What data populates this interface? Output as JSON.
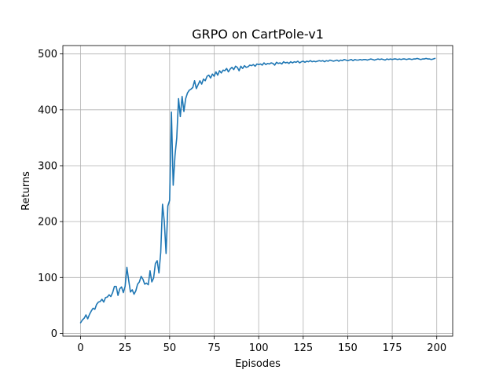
{
  "chart_data": {
    "type": "line",
    "title": "GRPO on CartPole-v1",
    "xlabel": "Episodes",
    "ylabel": "Returns",
    "xlim": [
      -9.95,
      208.95
    ],
    "ylim": [
      -5,
      515
    ],
    "xticks": [
      0,
      25,
      50,
      75,
      100,
      125,
      150,
      175,
      200
    ],
    "yticks": [
      0,
      100,
      200,
      300,
      400,
      500
    ],
    "grid": true,
    "line_color": "#1f77b4",
    "series": [
      {
        "x": [
          0,
          1,
          2,
          3,
          4,
          5,
          6,
          7,
          8,
          9,
          10,
          11,
          12,
          13,
          14,
          15,
          16,
          17,
          18,
          19,
          20,
          21,
          22,
          23,
          24,
          25,
          26,
          27,
          28,
          29,
          30,
          31,
          32,
          33,
          34,
          35,
          36,
          37,
          38,
          39,
          40,
          41,
          42,
          43,
          44,
          45,
          46,
          47,
          48,
          49,
          50,
          51,
          52,
          53,
          54,
          55,
          56,
          57,
          58,
          59,
          60,
          61,
          62,
          63,
          64,
          65,
          66,
          67,
          68,
          69,
          70,
          71,
          72,
          73,
          74,
          75,
          76,
          77,
          78,
          79,
          80,
          81,
          82,
          83,
          84,
          85,
          86,
          87,
          88,
          89,
          90,
          91,
          92,
          93,
          94,
          95,
          96,
          97,
          98,
          99,
          100,
          101,
          102,
          103,
          104,
          105,
          106,
          107,
          108,
          109,
          110,
          111,
          112,
          113,
          114,
          115,
          116,
          117,
          118,
          119,
          120,
          121,
          122,
          123,
          124,
          125,
          126,
          127,
          128,
          129,
          130,
          131,
          132,
          133,
          134,
          135,
          136,
          137,
          138,
          139,
          140,
          141,
          142,
          143,
          144,
          145,
          146,
          147,
          148,
          149,
          150,
          151,
          152,
          153,
          154,
          155,
          156,
          157,
          158,
          159,
          160,
          161,
          162,
          163,
          164,
          165,
          166,
          167,
          168,
          169,
          170,
          171,
          172,
          173,
          174,
          175,
          176,
          177,
          178,
          179,
          180,
          181,
          182,
          183,
          184,
          185,
          186,
          187,
          188,
          189,
          190,
          191,
          192,
          193,
          194,
          195,
          196,
          197,
          198,
          199
        ],
        "y": [
          19,
          24,
          27,
          33,
          26,
          34,
          40,
          45,
          43,
          52,
          56,
          57,
          61,
          56,
          64,
          65,
          69,
          66,
          73,
          84,
          84,
          68,
          80,
          83,
          73,
          84,
          118,
          95,
          74,
          78,
          70,
          76,
          88,
          92,
          102,
          97,
          88,
          90,
          87,
          112,
          92,
          99,
          125,
          130,
          108,
          145,
          231,
          200,
          143,
          228,
          238,
          396,
          265,
          318,
          350,
          420,
          388,
          424,
          397,
          420,
          430,
          435,
          437,
          440,
          452,
          438,
          445,
          452,
          446,
          455,
          452,
          460,
          462,
          457,
          464,
          460,
          468,
          462,
          470,
          466,
          471,
          470,
          474,
          468,
          473,
          476,
          472,
          478,
          476,
          470,
          478,
          474,
          479,
          476,
          477,
          480,
          479,
          481,
          478,
          482,
          481,
          482,
          480,
          484,
          481,
          483,
          482,
          484,
          483,
          480,
          485,
          483,
          484,
          482,
          486,
          484,
          485,
          483,
          486,
          484,
          486,
          485,
          487,
          484,
          486,
          487,
          485,
          487,
          486,
          488,
          486,
          487,
          486,
          487,
          488,
          487,
          488,
          486,
          488,
          487,
          489,
          488,
          487,
          488,
          489,
          487,
          489,
          488,
          490,
          489,
          488,
          489,
          490,
          488,
          490,
          489,
          489,
          490,
          489,
          490,
          490,
          489,
          490,
          491,
          490,
          489,
          490,
          491,
          490,
          491,
          490,
          489,
          491,
          490,
          491,
          490,
          491,
          491,
          490,
          491,
          490,
          491,
          491,
          490,
          491,
          491,
          490,
          491,
          491,
          492,
          491,
          490,
          491,
          491,
          492,
          491,
          491,
          490,
          491,
          492
        ]
      }
    ]
  }
}
